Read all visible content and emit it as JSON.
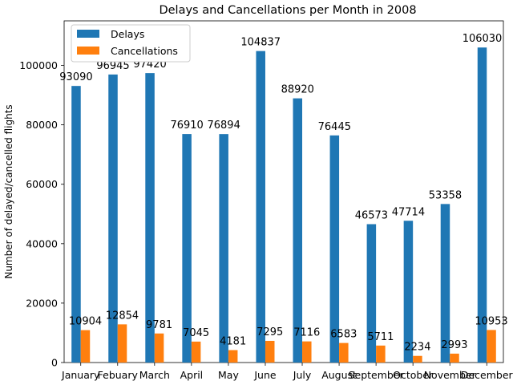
{
  "chart_data": {
    "type": "bar",
    "title": "Delays and Cancellations per Month in 2008",
    "xlabel": "",
    "ylabel": "Number of delayed/cancelled flights",
    "ylim": [
      0,
      115000
    ],
    "yticks": [
      0,
      20000,
      40000,
      60000,
      80000,
      100000
    ],
    "grid": false,
    "legend_position": "top-left",
    "categories": [
      "January",
      "Febuary",
      "March",
      "April",
      "May",
      "June",
      "July",
      "August",
      "September",
      "October",
      "November",
      "December"
    ],
    "series": [
      {
        "name": "Delays",
        "color": "#1f77b4",
        "values": [
          93090,
          96945,
          97420,
          76910,
          76894,
          104837,
          88920,
          76445,
          46573,
          47714,
          53358,
          106030
        ]
      },
      {
        "name": "Cancellations",
        "color": "#ff7f0e",
        "values": [
          10904,
          12854,
          9781,
          7045,
          4181,
          7295,
          7116,
          6583,
          5711,
          2234,
          2993,
          10953
        ]
      }
    ]
  }
}
